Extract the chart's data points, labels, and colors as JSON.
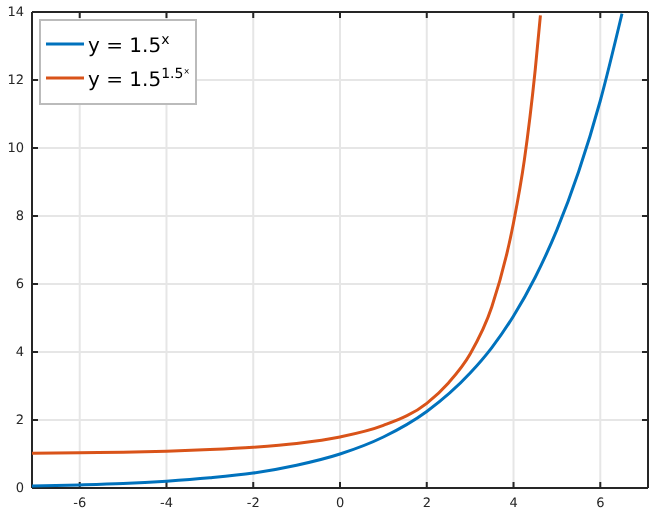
{
  "chart_data": {
    "type": "line",
    "xlim": [
      -7.1,
      7.1
    ],
    "ylim": [
      0,
      14
    ],
    "xticks": [
      -6,
      -4,
      -2,
      0,
      2,
      4,
      6
    ],
    "yticks": [
      0,
      2,
      4,
      6,
      8,
      10,
      12,
      14
    ],
    "grid": true,
    "legend": "top left",
    "marker": "none",
    "line_style": "solid",
    "series": [
      {
        "name": "y = 1.5$^{x}$",
        "color": "#0072bd",
        "x": [
          -7.1,
          -6,
          -5,
          -4,
          -3,
          -2,
          -1,
          0,
          1,
          2,
          3,
          3.5,
          4,
          4.5,
          5,
          5.5,
          6,
          6.5
        ],
        "values": [
          0.06,
          0.09,
          0.13,
          0.2,
          0.3,
          0.44,
          0.67,
          1,
          1.5,
          2.25,
          3.38,
          4.13,
          5.06,
          6.2,
          7.59,
          9.3,
          11.39,
          13.95
        ]
      },
      {
        "name": "y = 1.5$^{1.5ˣ}$",
        "color": "#d95319",
        "x": [
          -7.1,
          -6,
          -5,
          -4,
          -3,
          -2,
          -1,
          0,
          1,
          2,
          2.5,
          3,
          3.5,
          4,
          4.25,
          4.5,
          4.62
        ],
        "values": [
          1.02,
          1.04,
          1.05,
          1.08,
          1.13,
          1.2,
          1.31,
          1.5,
          1.84,
          2.49,
          3.09,
          3.94,
          5.33,
          7.8,
          9.65,
          12.3,
          13.9
        ]
      }
    ]
  }
}
